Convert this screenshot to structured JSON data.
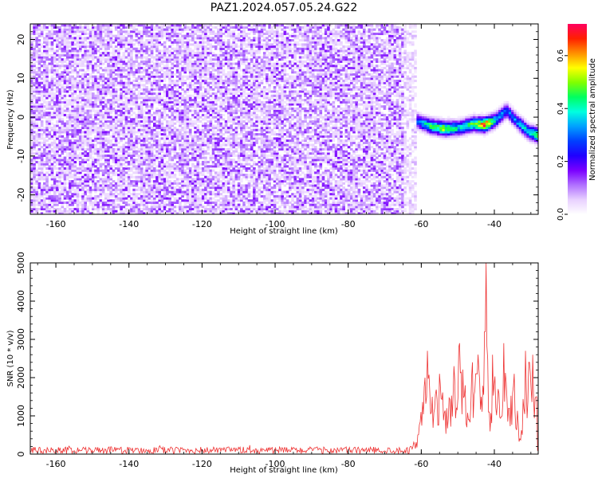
{
  "chart_data": [
    {
      "type": "heatmap",
      "title": "PAZ1.2024.057.05.24.G22",
      "xlabel": "Height of straight line (km)",
      "ylabel": "Frequency (Hz)",
      "xlim": [
        -167,
        -28
      ],
      "ylim": [
        -25,
        24
      ],
      "xticks": [
        -160,
        -140,
        -120,
        -100,
        -80,
        -60,
        -40
      ],
      "yticks": [
        -20,
        -10,
        0,
        10,
        20
      ],
      "colorbar": {
        "label": "Normalized spectral amplitude",
        "range": [
          0,
          0.72
        ],
        "ticks": [
          0.0,
          0.2,
          0.4,
          0.6
        ],
        "colormap": [
          "#ffffff",
          "#e8d0ff",
          "#b070ff",
          "#7a00ff",
          "#2000ff",
          "#0040ff",
          "#00a0ff",
          "#00ffe0",
          "#00ff60",
          "#80ff00",
          "#ffff00",
          "#ff9000",
          "#ff2000",
          "#ff0060"
        ]
      },
      "noise_region": {
        "x": [
          -167,
          -62
        ],
        "y": [
          -25,
          24
        ],
        "amplitude_range": [
          0.03,
          0.16
        ]
      },
      "signal_track": {
        "x": [
          -62,
          -58,
          -54,
          -50,
          -46,
          -43,
          -40,
          -37,
          -34,
          -31,
          -28
        ],
        "y": [
          -1,
          -2.5,
          -3.2,
          -3.0,
          -2.0,
          -2.2,
          -1.0,
          1.5,
          -1.5,
          -4.0,
          -5.0
        ],
        "amplitude": [
          0.28,
          0.45,
          0.55,
          0.4,
          0.48,
          0.72,
          0.38,
          0.3,
          0.35,
          0.42,
          0.5
        ]
      }
    },
    {
      "type": "line",
      "xlabel": "Height of straight line (km)",
      "ylabel": "SNR (10 * v/v)",
      "xlim": [
        -167,
        -28
      ],
      "ylim": [
        0,
        5000
      ],
      "xticks": [
        -160,
        -140,
        -120,
        -100,
        -80,
        -60,
        -40
      ],
      "yticks": [
        0,
        1000,
        2000,
        3000,
        4000,
        5000
      ],
      "color": "#ee3333",
      "baseline_noise": {
        "x": [
          -167,
          -63
        ],
        "mean": 100,
        "spread": 90
      },
      "peaks": {
        "x": [
          -61,
          -60,
          -59,
          -58.3,
          -57,
          -55,
          -53,
          -51,
          -49.5,
          -48,
          -47,
          -46,
          -45,
          -44.5,
          -43.5,
          -42.6,
          -42.2,
          -41.5,
          -40.5,
          -39,
          -37.5,
          -36,
          -34.5,
          -33,
          -31.5,
          -30.5,
          -29.5,
          -28.5
        ],
        "y": [
          500,
          1100,
          2000,
          2700,
          1500,
          2100,
          1200,
          2300,
          2900,
          1800,
          900,
          2400,
          2100,
          2600,
          1500,
          3200,
          5000,
          1100,
          2600,
          1700,
          2900,
          1200,
          2100,
          400,
          2700,
          2400,
          2600,
          1500
        ]
      }
    }
  ]
}
